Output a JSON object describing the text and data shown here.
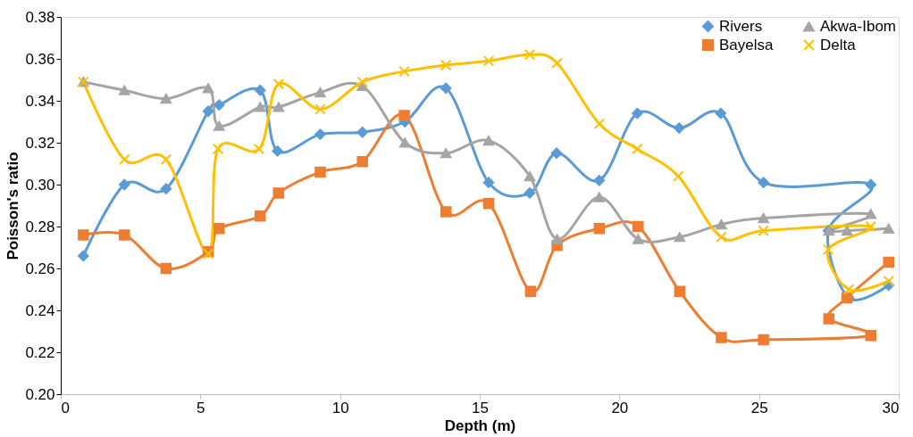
{
  "chart_data": {
    "type": "line",
    "xlabel": "Depth (m)",
    "ylabel": "Poisson's ratio",
    "xlim": [
      0,
      30
    ],
    "xticks": [
      0,
      5,
      10,
      15,
      20,
      25,
      30
    ],
    "ylim": [
      0.2,
      0.38
    ],
    "yticks": [
      {
        "value": 0.2,
        "label": "0.20"
      },
      {
        "value": 0.22,
        "label": "0.22"
      },
      {
        "value": 0.24,
        "label": "0.24"
      },
      {
        "value": 0.26,
        "label": "0.26"
      },
      {
        "value": 0.28,
        "label": "0.28"
      },
      {
        "value": 0.3,
        "label": "0.30"
      },
      {
        "value": 0.32,
        "label": "0.32"
      },
      {
        "value": 0.34,
        "label": "0.34"
      },
      {
        "value": 0.36,
        "label": "0.36"
      },
      {
        "value": 0.38,
        "label": "0.38"
      }
    ],
    "grid": false,
    "legend": "top right",
    "line_style": "solid",
    "series": [
      {
        "name": "Rivers",
        "color": "#5b9bd5",
        "marker": "diamond",
        "x": [
          0.81,
          2.28,
          3.77,
          5.28,
          5.67,
          7.14,
          7.76,
          9.29,
          10.8,
          12.32,
          13.79,
          15.32,
          16.79,
          17.75,
          19.28,
          20.64,
          22.14,
          23.63,
          25.16,
          29.0,
          27.48,
          28.21,
          29.64
        ],
        "values": [
          0.266,
          0.3,
          0.298,
          0.335,
          0.338,
          0.345,
          0.316,
          0.324,
          0.325,
          0.33,
          0.346,
          0.301,
          0.296,
          0.315,
          0.302,
          0.334,
          0.327,
          0.334,
          0.301,
          0.3,
          0.278,
          0.246,
          0.252
        ]
      },
      {
        "name": "Bayelsa",
        "color": "#ed7d31",
        "marker": "square",
        "x": [
          0.81,
          2.28,
          3.77,
          5.28,
          5.67,
          7.14,
          7.8,
          9.29,
          10.8,
          12.3,
          13.79,
          15.32,
          16.82,
          17.77,
          19.28,
          20.67,
          22.16,
          23.65,
          25.16,
          29.0,
          27.5,
          28.15,
          29.64
        ],
        "values": [
          0.276,
          0.276,
          0.26,
          0.268,
          0.279,
          0.285,
          0.296,
          0.306,
          0.311,
          0.333,
          0.287,
          0.291,
          0.249,
          0.271,
          0.279,
          0.28,
          0.249,
          0.227,
          0.226,
          0.228,
          0.236,
          0.246,
          0.263
        ]
      },
      {
        "name": "Akwa-Ibom",
        "color": "#a5a5a5",
        "marker": "triangle",
        "x": [
          0.81,
          2.28,
          3.77,
          5.28,
          5.67,
          7.14,
          7.8,
          9.29,
          10.8,
          12.32,
          13.79,
          15.32,
          16.79,
          17.77,
          19.28,
          20.67,
          22.16,
          23.65,
          25.16,
          29.0,
          27.5,
          28.15,
          29.64
        ],
        "values": [
          0.349,
          0.345,
          0.341,
          0.346,
          0.328,
          0.337,
          0.337,
          0.344,
          0.347,
          0.32,
          0.315,
          0.321,
          0.304,
          0.274,
          0.294,
          0.274,
          0.275,
          0.281,
          0.284,
          0.286,
          0.278,
          0.278,
          0.279
        ]
      },
      {
        "name": "Delta",
        "color": "#ffc000",
        "marker": "cross",
        "x": [
          0.81,
          2.28,
          3.77,
          5.28,
          5.63,
          7.1,
          7.8,
          9.29,
          10.8,
          12.3,
          13.79,
          15.32,
          16.79,
          17.77,
          19.28,
          20.64,
          22.11,
          23.65,
          25.16,
          29.0,
          27.48,
          28.21,
          29.64
        ],
        "values": [
          0.349,
          0.312,
          0.312,
          0.267,
          0.317,
          0.317,
          0.348,
          0.336,
          0.349,
          0.354,
          0.357,
          0.359,
          0.362,
          0.358,
          0.329,
          0.317,
          0.304,
          0.275,
          0.278,
          0.28,
          0.269,
          0.25,
          0.254
        ]
      }
    ]
  }
}
